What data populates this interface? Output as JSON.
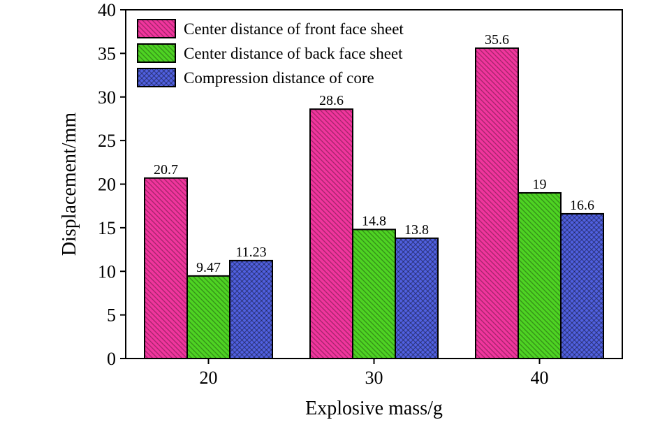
{
  "chart_data": {
    "type": "bar",
    "categories": [
      "20",
      "30",
      "40"
    ],
    "series": [
      {
        "name": "Center distance of front face sheet",
        "values": [
          20.7,
          28.6,
          35.6
        ],
        "labels": [
          "20.7",
          "28.6",
          "35.6"
        ],
        "color": "#f0359d",
        "pattern": "diagonal-hatch"
      },
      {
        "name": "Center distance of back face sheet",
        "values": [
          9.47,
          14.8,
          19
        ],
        "labels": [
          "9.47",
          "14.8",
          "19"
        ],
        "color": "#4ed323",
        "pattern": "diagonal-hatch"
      },
      {
        "name": "Compression distance of core",
        "values": [
          11.23,
          13.8,
          16.6
        ],
        "labels": [
          "11.23",
          "13.8",
          "16.6"
        ],
        "color": "#5060e0",
        "pattern": "cross-hatch"
      }
    ],
    "xlabel": "Explosive mass/g",
    "ylabel": "Displacement/mm",
    "ylim": [
      0,
      40
    ],
    "yticks": [
      "0",
      "5",
      "10",
      "15",
      "20",
      "25",
      "30",
      "35",
      "40"
    ],
    "grid": false,
    "legend_position": "top-left"
  }
}
